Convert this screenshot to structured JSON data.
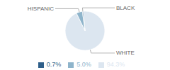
{
  "chart_data": {
    "type": "pie",
    "categories": [
      "WHITE",
      "HISPANIC",
      "BLACK"
    ],
    "values": [
      94.3,
      5.0,
      0.7
    ],
    "value_labels": [
      "94.3%",
      "5.0%",
      "0.7%"
    ],
    "colors": [
      "#dce6f0",
      "#8eb4cb",
      "#2e5f8a"
    ],
    "legend": "bottom"
  }
}
